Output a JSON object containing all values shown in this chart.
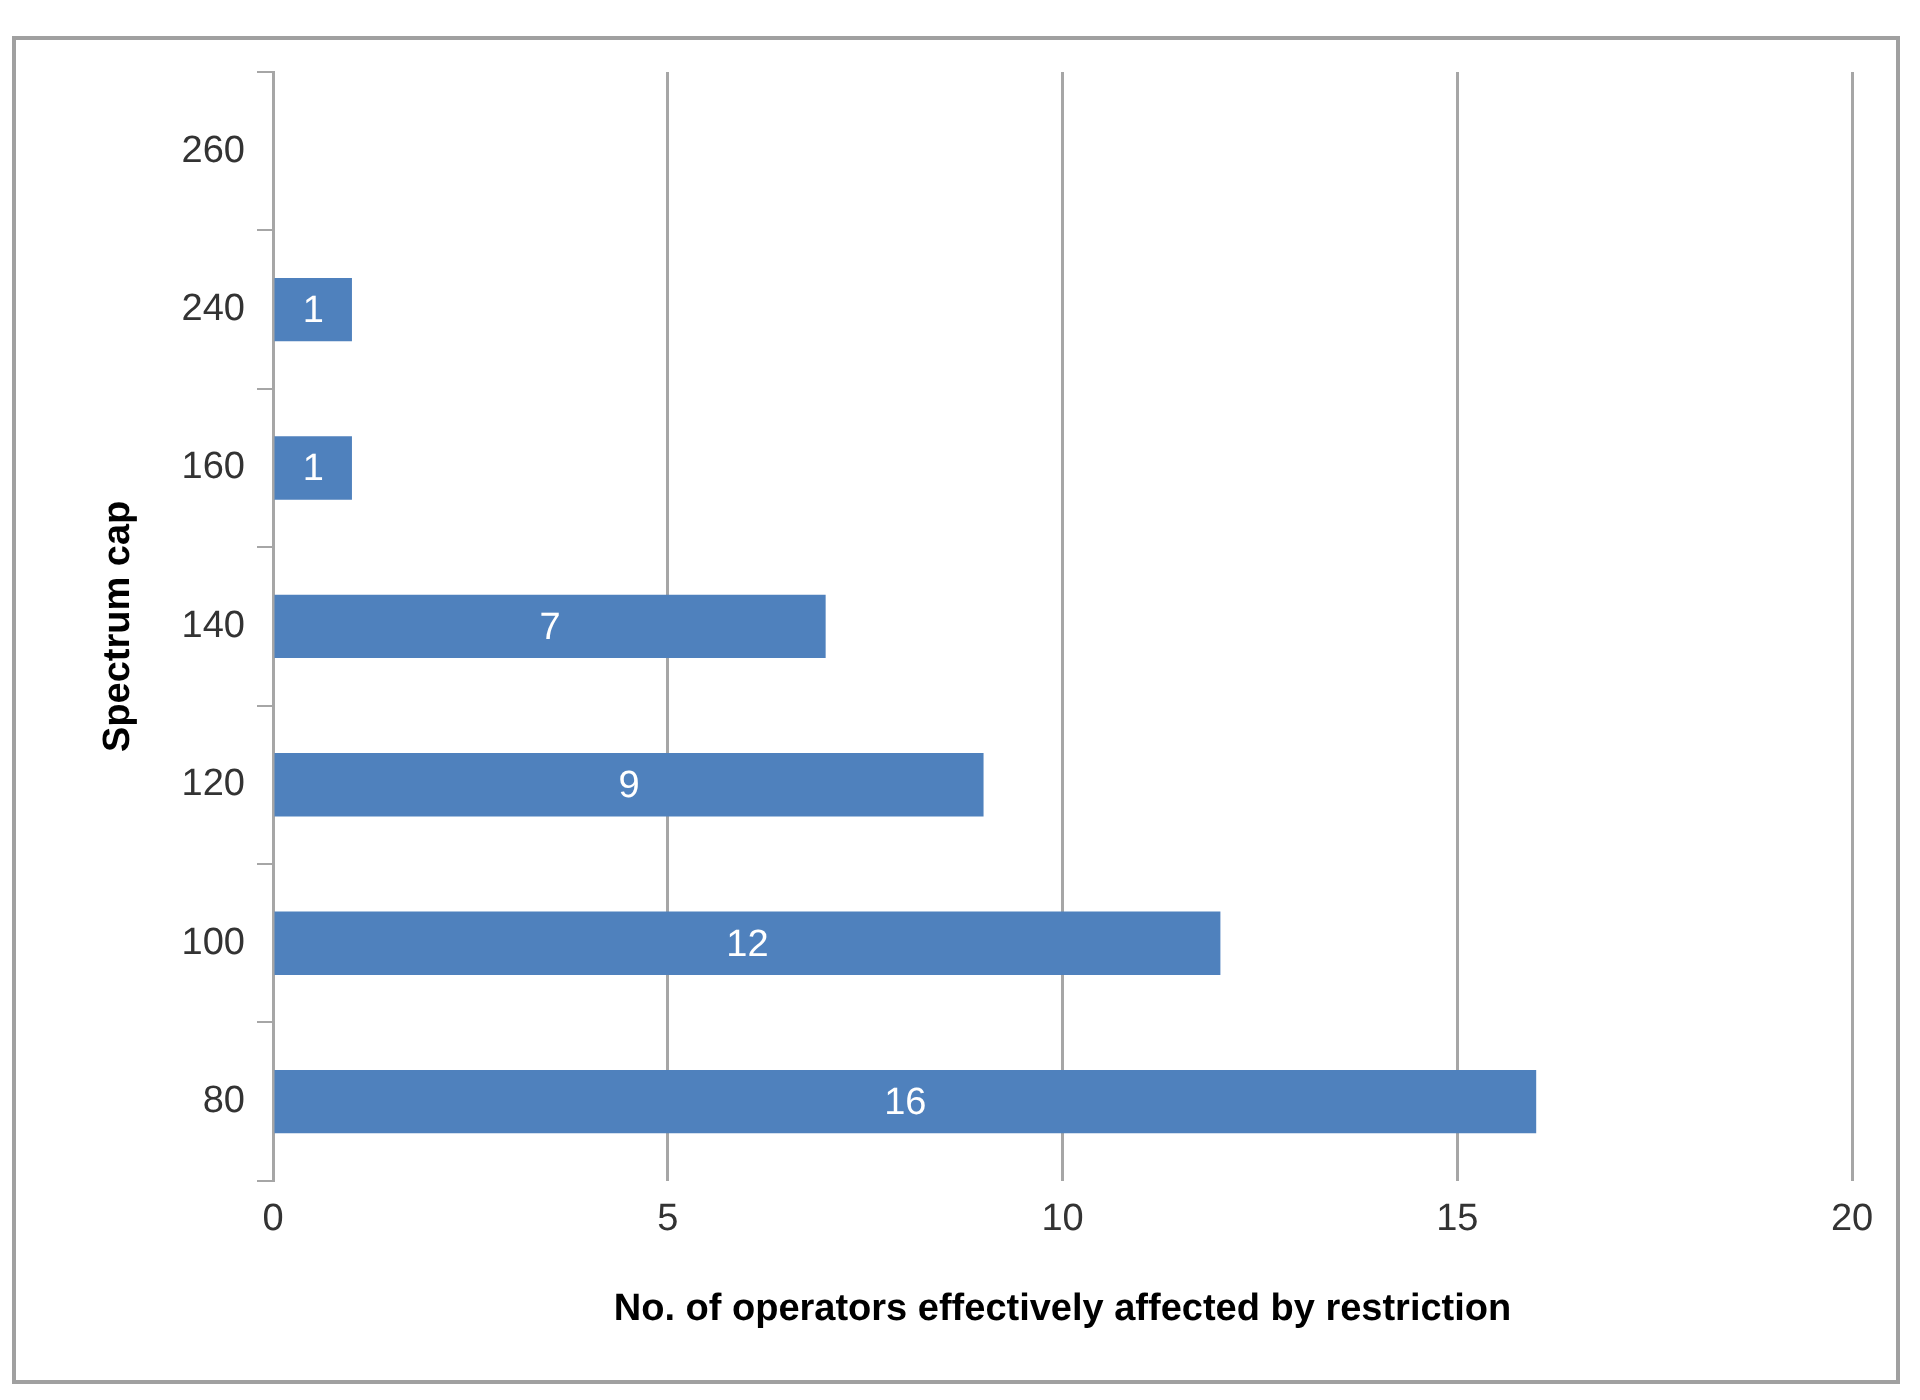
{
  "chart_data": {
    "type": "bar",
    "orientation": "horizontal",
    "xlabel": "No. of operators effectively affected by restriction",
    "ylabel": "Spectrum cap",
    "categories": [
      "260",
      "240",
      "160",
      "140",
      "120",
      "100",
      "80"
    ],
    "series": [
      {
        "color": "#4f81bd",
        "values": [
          null,
          1,
          1,
          7,
          9,
          12,
          16
        ]
      }
    ],
    "xlim": [
      0,
      20
    ],
    "xticks": [
      0,
      5,
      10,
      15,
      20
    ],
    "grid": "x",
    "legend": false,
    "data_labels": true
  }
}
